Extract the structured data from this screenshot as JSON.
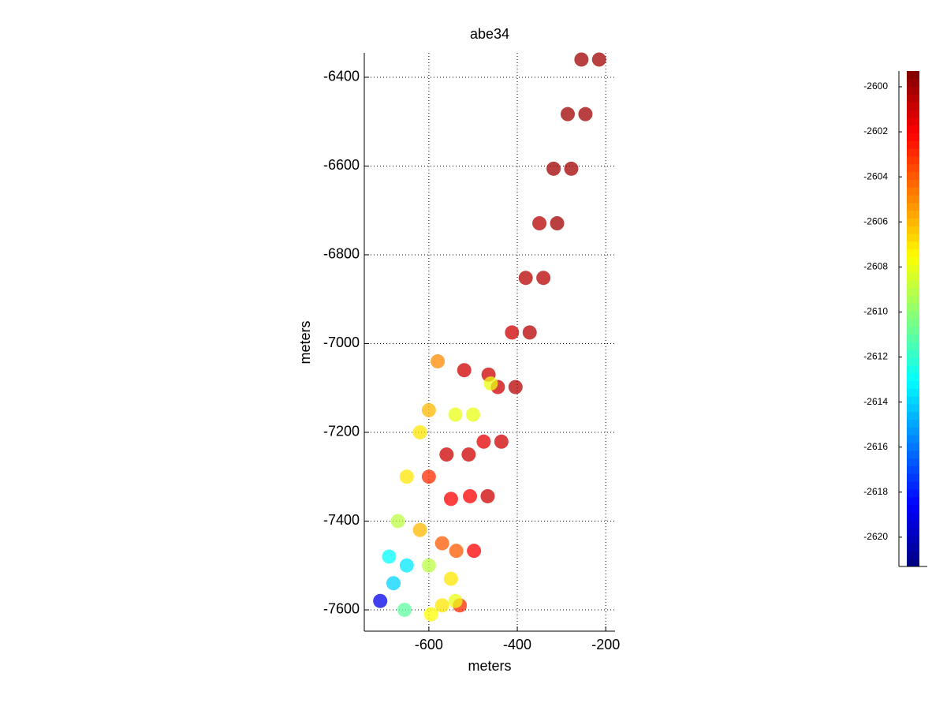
{
  "chart_data": {
    "type": "scatter",
    "title": "abe34",
    "x_label": "meters",
    "y_label": "meters",
    "x": [
      -215,
      -246,
      -278,
      -310,
      -341,
      -372,
      -404,
      -436,
      -467,
      -498,
      -530,
      -255,
      -286,
      -318,
      -350,
      -381,
      -412,
      -444,
      -476,
      -507,
      -538,
      -570,
      -580,
      -520,
      -465,
      -460,
      -540,
      -500,
      -600,
      -620,
      -560,
      -510,
      -650,
      -600,
      -550,
      -670,
      -620,
      -570,
      -690,
      -650,
      -600,
      -550,
      -710,
      -655,
      -595,
      -540,
      -680
    ],
    "y": [
      -6360,
      -6483,
      -6606,
      -6729,
      -6852,
      -6975,
      -7098,
      -7221,
      -7344,
      -7467,
      -7590,
      -6360,
      -6483,
      -6606,
      -6729,
      -6852,
      -6975,
      -7098,
      -7221,
      -7344,
      -7467,
      -7590,
      -7040,
      -7060,
      -7070,
      -7090,
      -7160,
      -7160,
      -7150,
      -7200,
      -7250,
      -7250,
      -7300,
      -7300,
      -7350,
      -7400,
      -7420,
      -7450,
      -7480,
      -7500,
      -7500,
      -7530,
      -7580,
      -7600,
      -7610,
      -7580,
      -7540
    ],
    "values": [
      -2600,
      -2600,
      -2600,
      -2600,
      -2600.5,
      -2600.5,
      -2600.5,
      -2601,
      -2601,
      -2602,
      -2603,
      -2600,
      -2600,
      -2600,
      -2600.5,
      -2600.5,
      -2601,
      -2601,
      -2601.5,
      -2602,
      -2604,
      -2607,
      -2605,
      -2601,
      -2601,
      -2608,
      -2608,
      -2608,
      -2606,
      -2607,
      -2601,
      -2601,
      -2607,
      -2603,
      -2602,
      -2609,
      -2606,
      -2604,
      -2613,
      -2613.5,
      -2609,
      -2607,
      -2619,
      -2611,
      -2607.5,
      -2608,
      -2614
    ],
    "xlim": [
      -746,
      -179
    ],
    "ylim": [
      -7648,
      -6345
    ],
    "xticks": [
      -600,
      -400,
      -200
    ],
    "yticks": [
      -7600,
      -7400,
      -7200,
      -7000,
      -6800,
      -6600,
      -6400
    ],
    "grid": true,
    "clim": [
      -2621.3,
      -2599.3
    ],
    "cticks": [
      -2620,
      -2618,
      -2616,
      -2614,
      -2612,
      -2610,
      -2608,
      -2606,
      -2604,
      -2602,
      -2600
    ]
  }
}
